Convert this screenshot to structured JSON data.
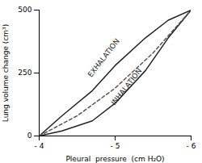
{
  "chart_data": {
    "type": "line",
    "xlabel": "Pleural  pressure  (cm H₂O)",
    "ylabel": "Lung volume change (cm³)",
    "xlim": [
      -4,
      -6
    ],
    "ylim": [
      0,
      500
    ],
    "xticks": [
      {
        "value": -4,
        "label": "- 4"
      },
      {
        "value": -5,
        "label": "- 5"
      },
      {
        "value": -6,
        "label": "- 6"
      }
    ],
    "yticks": [
      0,
      250,
      500
    ],
    "series": [
      {
        "x": [
          -4,
          -4.3,
          -4.7,
          -5.0,
          -5.4,
          -5.7,
          -6.0
        ],
        "values": [
          0,
          80,
          180,
          280,
          390,
          460,
          500
        ],
        "color": "#222222",
        "line_style": "solid"
      },
      {
        "x": [
          -4,
          -4.3,
          -4.7,
          -5.0,
          -5.4,
          -5.7,
          -6.0
        ],
        "values": [
          0,
          20,
          60,
          130,
          260,
          390,
          500
        ],
        "color": "#222222",
        "line_style": "solid"
      },
      {
        "x": [
          -4,
          -4.5,
          -5.0,
          -5.5,
          -6.0
        ],
        "values": [
          0,
          80,
          190,
          330,
          500
        ],
        "color": "#555555",
        "line_style": "dashed"
      }
    ],
    "annotations": [
      {
        "text": "EXHALATION",
        "x": -4.85,
        "y": 310
      },
      {
        "text": "INHALATION",
        "x": -5.15,
        "y": 195
      }
    ]
  }
}
